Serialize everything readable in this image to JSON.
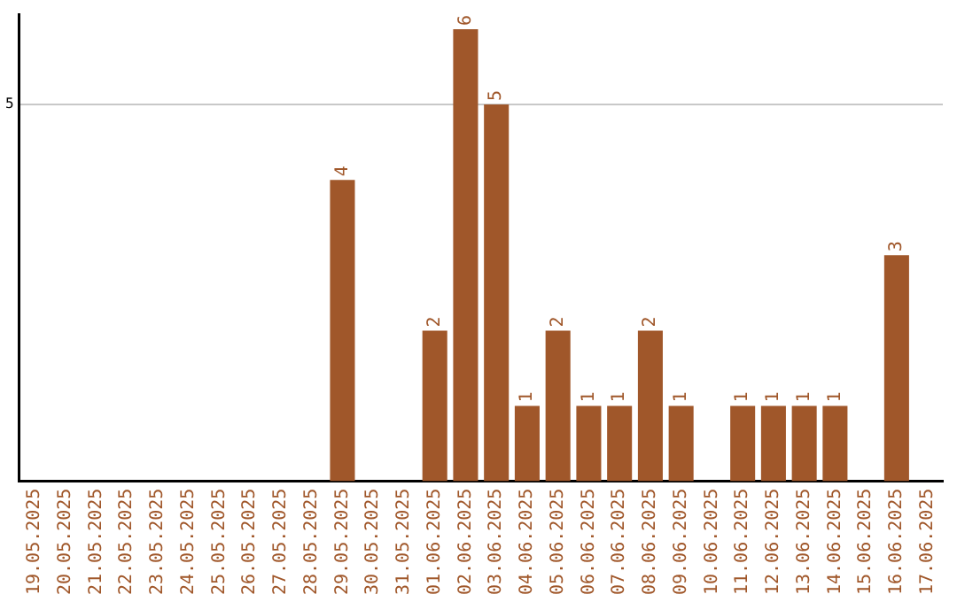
{
  "chart_data": {
    "type": "bar",
    "categories": [
      "19.05.2025",
      "20.05.2025",
      "21.05.2025",
      "22.05.2025",
      "23.05.2025",
      "24.05.2025",
      "25.05.2025",
      "26.05.2025",
      "27.05.2025",
      "28.05.2025",
      "29.05.2025",
      "30.05.2025",
      "31.05.2025",
      "01.06.2025",
      "02.06.2025",
      "03.06.2025",
      "04.06.2025",
      "05.06.2025",
      "06.06.2025",
      "07.06.2025",
      "08.06.2025",
      "09.06.2025",
      "10.06.2025",
      "11.06.2025",
      "12.06.2025",
      "13.06.2025",
      "14.06.2025",
      "15.06.2025",
      "16.06.2025",
      "17.06.2025"
    ],
    "values": [
      null,
      null,
      null,
      null,
      null,
      null,
      null,
      null,
      null,
      null,
      4,
      null,
      null,
      2,
      6,
      5,
      1,
      2,
      1,
      1,
      2,
      1,
      null,
      1,
      1,
      1,
      1,
      null,
      3,
      null
    ],
    "color": "#a0572a",
    "ylim": [
      0,
      6.2
    ],
    "yticks": [
      5
    ],
    "grid": "y",
    "data_labels": true,
    "legend": false
  }
}
